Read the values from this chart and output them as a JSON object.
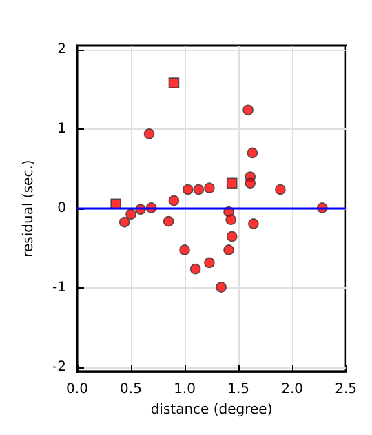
{
  "chart_data": {
    "type": "scatter",
    "xlabel": "distance (degree)",
    "ylabel": "residual (sec.)",
    "xlim": [
      0,
      2.5
    ],
    "ylim": [
      -2.05,
      2.05
    ],
    "xticks": [
      {
        "value": 0,
        "label": "0.0"
      },
      0.5,
      {
        "value": 1,
        "label": "1.0"
      },
      1.5,
      {
        "value": 2,
        "label": "2.0"
      },
      2.5
    ],
    "yticks": [
      -2,
      -1,
      0,
      1,
      2
    ],
    "grid": true,
    "series": [
      {
        "color": "#ff0000",
        "marker": "circle",
        "x": [
          0.67,
          1.59,
          1.63,
          1.61,
          1.61,
          0.9,
          1.03,
          1.13,
          1.23,
          1.89,
          2.28,
          0.44,
          0.5,
          0.59,
          0.69,
          0.85,
          1.0,
          1.1,
          1.23,
          1.34,
          1.41,
          1.43,
          1.44,
          1.41,
          1.64
        ],
        "values": [
          0.94,
          1.24,
          0.7,
          0.4,
          0.32,
          0.1,
          0.24,
          0.24,
          0.26,
          0.24,
          0.01,
          -0.17,
          -0.07,
          -0.01,
          0.01,
          -0.16,
          -0.52,
          -0.76,
          -0.68,
          -0.99,
          -0.04,
          -0.14,
          -0.35,
          -0.52,
          -0.19
        ]
      },
      {
        "color": "#ff0000",
        "marker": "square",
        "x": [
          0.36,
          0.9,
          1.44
        ],
        "values": [
          0.06,
          1.58,
          0.32
        ]
      }
    ],
    "ref_lines": [
      {
        "axis": "y",
        "value": 0,
        "color": "#0000ff",
        "line_style": "solid"
      }
    ]
  }
}
